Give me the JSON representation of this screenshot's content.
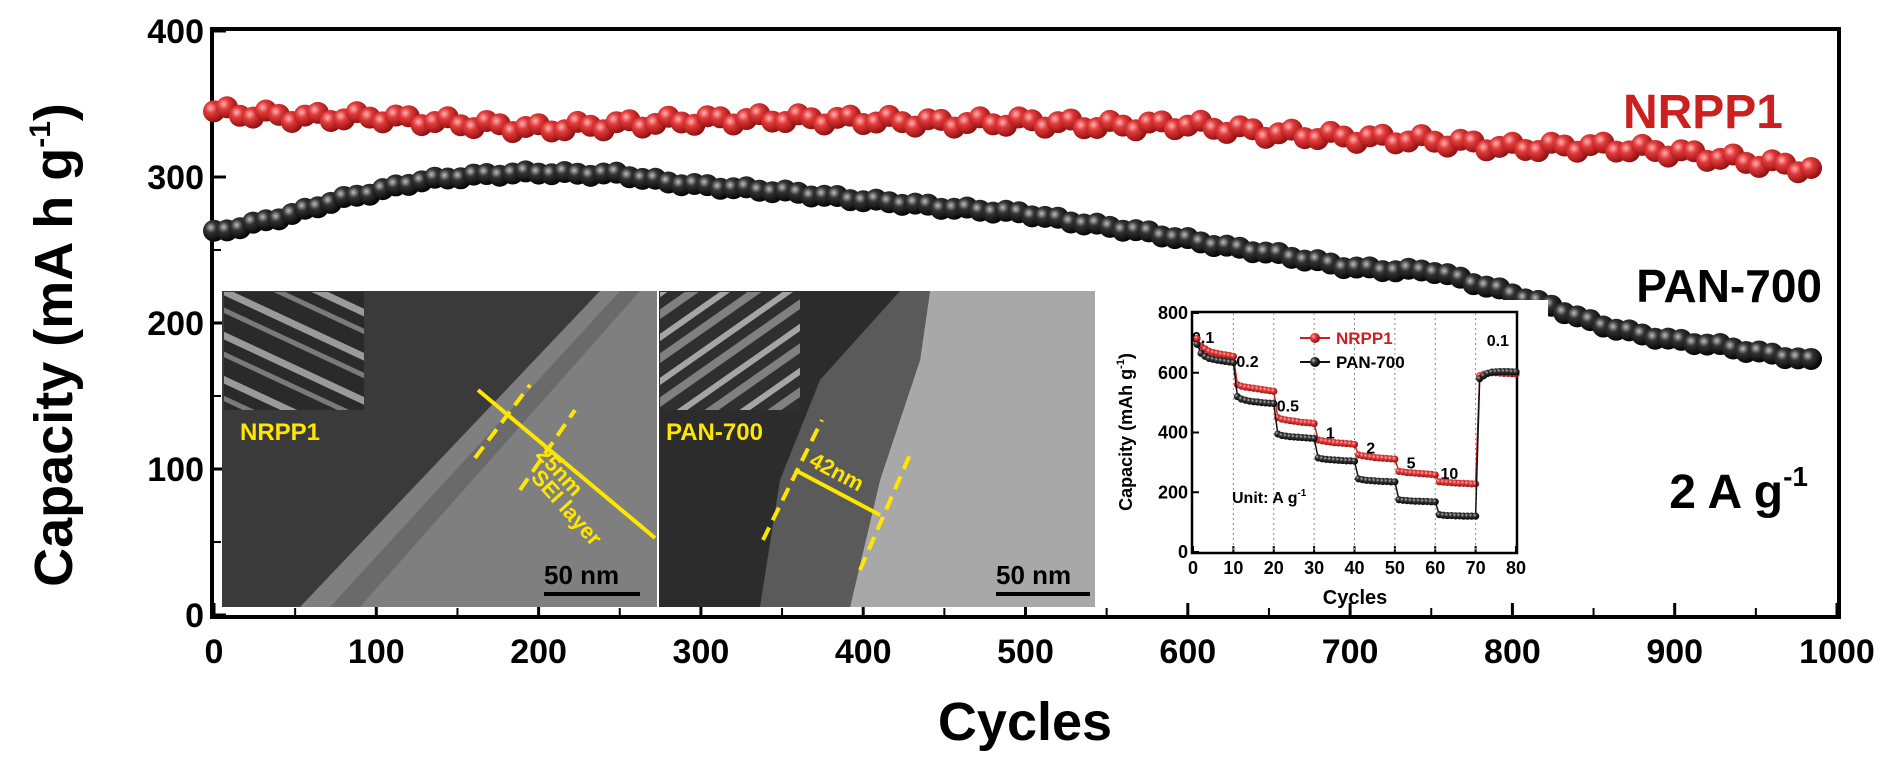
{
  "chart_data": [
    {
      "type": "scatter",
      "xlabel": "Cycles",
      "ylabel": "Capacity (mA h g",
      "ylabel_sup": "-1",
      "ylabel_close": ")",
      "xlim": [
        0,
        1000
      ],
      "ylim": [
        0,
        400
      ],
      "xticks": [
        "0",
        "100",
        "200",
        "300",
        "400",
        "500",
        "600",
        "700",
        "800",
        "900",
        "1000"
      ],
      "yticks": [
        "0",
        "100",
        "200",
        "300",
        "400"
      ],
      "condition_label": "2 A g",
      "condition_sup": "-1",
      "series": [
        {
          "name": "NRPP1",
          "color": "#cc1f1f",
          "x": [
            0,
            50,
            100,
            150,
            200,
            250,
            300,
            350,
            400,
            450,
            500,
            550,
            600,
            650,
            700,
            750,
            800,
            850,
            900,
            950,
            990
          ],
          "y": [
            345,
            341,
            341,
            337,
            333,
            336,
            339,
            340,
            339,
            337,
            338,
            335,
            336,
            330,
            327,
            325,
            320,
            321,
            317,
            310,
            305
          ]
        },
        {
          "name": "PAN-700",
          "color": "#111111",
          "x": [
            0,
            25,
            50,
            75,
            100,
            125,
            150,
            175,
            200,
            225,
            250,
            275,
            300,
            325,
            350,
            375,
            400,
            425,
            450,
            475,
            500,
            525,
            550,
            575,
            600,
            625,
            650,
            675,
            700,
            725,
            750,
            775,
            800,
            825,
            850,
            875,
            900,
            925,
            950,
            975,
            990
          ],
          "y": [
            262,
            268,
            275,
            284,
            290,
            297,
            300,
            302,
            303,
            302,
            302,
            297,
            294,
            292,
            290,
            287,
            284,
            282,
            279,
            277,
            275,
            270,
            266,
            262,
            257,
            252,
            248,
            243,
            238,
            236,
            236,
            228,
            220,
            211,
            200,
            193,
            188,
            185,
            180,
            176,
            173
          ]
        }
      ]
    },
    {
      "type": "scatter",
      "xlabel": "Cycles",
      "ylabel": "Capacity (mAh g",
      "ylabel_sup": "-1",
      "ylabel_close": ")",
      "xlim": [
        0,
        80
      ],
      "ylim": [
        0,
        800
      ],
      "xticks": [
        "0",
        "10",
        "20",
        "30",
        "40",
        "50",
        "60",
        "70",
        "80"
      ],
      "yticks": [
        "0",
        "200",
        "400",
        "600",
        "800"
      ],
      "unit_text": "Unit: A g",
      "unit_sup": "-1",
      "rate_labels": [
        "0.1",
        "0.2",
        "0.5",
        "1",
        "2",
        "5",
        "10",
        "0.1"
      ],
      "series": [
        {
          "name": "NRPP1",
          "color": "#cc1f1f",
          "x": [
            1,
            2,
            3,
            4,
            5,
            6,
            7,
            8,
            9,
            10,
            11,
            12,
            13,
            14,
            15,
            16,
            17,
            18,
            19,
            20,
            21,
            22,
            23,
            24,
            25,
            26,
            27,
            28,
            29,
            30,
            31,
            32,
            33,
            34,
            35,
            36,
            37,
            38,
            39,
            40,
            41,
            42,
            43,
            44,
            45,
            46,
            47,
            48,
            49,
            50,
            51,
            52,
            53,
            54,
            55,
            56,
            57,
            58,
            59,
            60,
            61,
            62,
            63,
            64,
            65,
            66,
            67,
            68,
            69,
            70,
            71,
            72,
            73,
            74,
            75,
            76,
            77,
            78,
            79,
            80
          ],
          "y": [
            715,
            690,
            680,
            672,
            668,
            665,
            662,
            660,
            658,
            655,
            560,
            555,
            552,
            550,
            548,
            546,
            544,
            542,
            540,
            538,
            450,
            445,
            442,
            440,
            438,
            436,
            434,
            433,
            432,
            430,
            375,
            372,
            370,
            368,
            366,
            365,
            364,
            363,
            362,
            360,
            325,
            322,
            320,
            318,
            316,
            315,
            314,
            313,
            312,
            311,
            270,
            268,
            266,
            265,
            264,
            263,
            262,
            261,
            260,
            258,
            235,
            234,
            233,
            232,
            231,
            230,
            230,
            229,
            228,
            228,
            590,
            595,
            598,
            600,
            600,
            599,
            598,
            598,
            597,
            596
          ]
        },
        {
          "name": "PAN-700",
          "color": "#111111",
          "x": [
            1,
            2,
            3,
            4,
            5,
            6,
            7,
            8,
            9,
            10,
            11,
            12,
            13,
            14,
            15,
            16,
            17,
            18,
            19,
            20,
            21,
            22,
            23,
            24,
            25,
            26,
            27,
            28,
            29,
            30,
            31,
            32,
            33,
            34,
            35,
            36,
            37,
            38,
            39,
            40,
            41,
            42,
            43,
            44,
            45,
            46,
            47,
            48,
            49,
            50,
            51,
            52,
            53,
            54,
            55,
            56,
            57,
            58,
            59,
            60,
            61,
            62,
            63,
            64,
            65,
            66,
            67,
            68,
            69,
            70,
            71,
            72,
            73,
            74,
            75,
            76,
            77,
            78,
            79,
            80
          ],
          "y": [
            695,
            665,
            655,
            648,
            645,
            642,
            640,
            638,
            636,
            634,
            520,
            512,
            508,
            505,
            503,
            502,
            500,
            499,
            498,
            497,
            395,
            390,
            388,
            386,
            385,
            384,
            383,
            382,
            381,
            380,
            315,
            312,
            310,
            309,
            308,
            307,
            306,
            305,
            305,
            304,
            245,
            242,
            240,
            239,
            238,
            237,
            236,
            236,
            235,
            235,
            175,
            173,
            172,
            171,
            170,
            170,
            169,
            169,
            168,
            168,
            125,
            123,
            122,
            122,
            121,
            121,
            120,
            120,
            120,
            120,
            580,
            590,
            598,
            602,
            603,
            604,
            604,
            604,
            603,
            603
          ]
        }
      ]
    }
  ],
  "micrographs": [
    {
      "label": "NRPP1",
      "thickness_label": "25nm",
      "annotation": "SEI layer",
      "scale_bar": "50 nm"
    },
    {
      "label": "PAN-700",
      "thickness_label": "42nm",
      "scale_bar": "50 nm"
    }
  ]
}
